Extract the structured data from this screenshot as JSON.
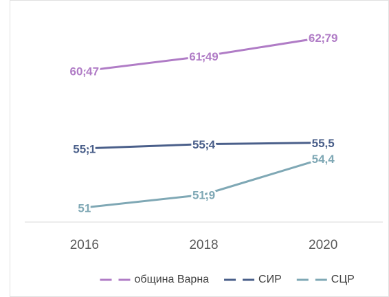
{
  "chart_data": {
    "type": "line",
    "categories": [
      "2016",
      "2018",
      "2020"
    ],
    "series": [
      {
        "name": "община Варна",
        "color": "#b07cc6",
        "values": [
          60.47,
          61.49,
          62.79
        ],
        "value_labels": [
          "60,47",
          "61,49",
          "62,79"
        ]
      },
      {
        "name": "СИР",
        "color": "#4a5f8a",
        "values": [
          55.1,
          55.4,
          55.5
        ],
        "value_labels": [
          "55,1",
          "55,4",
          "55,5"
        ]
      },
      {
        "name": "СЦР",
        "color": "#7fa8b5",
        "values": [
          51,
          51.9,
          54.4
        ],
        "value_labels": [
          "51",
          "51,9",
          "54,4"
        ]
      }
    ],
    "ylim": [
      50,
      65
    ]
  }
}
